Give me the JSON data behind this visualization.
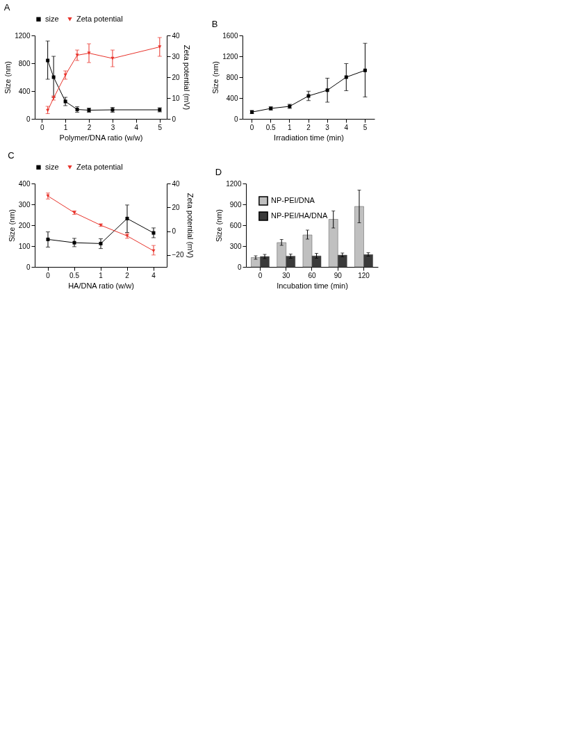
{
  "chart_data": [
    {
      "type": "line",
      "title": "A",
      "x": [
        0.25,
        0.5,
        1,
        1.5,
        2,
        3,
        5
      ],
      "xlim": [
        -0.3,
        5.3
      ],
      "xticks": [
        0,
        1,
        2,
        3,
        4,
        5
      ],
      "xlabel": "Polymer/DNA ratio (w/w)",
      "ylabel": "Size (nm)",
      "y2label": "Zeta potential (mV)",
      "ylim": [
        0,
        1200
      ],
      "yticks": [
        0,
        400,
        800,
        1200
      ],
      "y2lim": [
        0,
        40
      ],
      "y2ticks": [
        0,
        10,
        20,
        30,
        40
      ],
      "grid": false,
      "legend": "top",
      "series": [
        {
          "name": "size",
          "color": "#000000",
          "marker": "square",
          "values": [
            840,
            600,
            250,
            135,
            125,
            130,
            130
          ],
          "errors": [
            [
              570,
              1120
            ],
            [
              310,
              900
            ],
            [
              190,
              310
            ],
            [
              95,
              175
            ],
            [
              95,
              155
            ],
            [
              95,
              165
            ],
            [
              100,
              160
            ]
          ]
        },
        {
          "name": "Zeta potential",
          "color": "#e8322a",
          "marker": "triangle",
          "axis": "y2",
          "values": [
            4,
            10,
            21,
            30.5,
            31.5,
            29,
            34.5
          ],
          "errors": [
            [
              2.5,
              6
            ],
            [
              9,
              11
            ],
            [
              19,
              23
            ],
            [
              28,
              33
            ],
            [
              27,
              36
            ],
            [
              25,
              33
            ],
            [
              30,
              39
            ]
          ]
        }
      ]
    },
    {
      "type": "line",
      "title": "B",
      "categories": [
        "0",
        "0.5",
        "1",
        "2",
        "3",
        "4",
        "5"
      ],
      "xlabel": "Irradiation time (min)",
      "ylabel": "Size (nm)",
      "ylim": [
        0,
        1600
      ],
      "yticks": [
        0,
        400,
        800,
        1200,
        1600
      ],
      "grid": false,
      "series": [
        {
          "color": "#000000",
          "marker": "square",
          "values": [
            130,
            200,
            240,
            440,
            550,
            800,
            930
          ],
          "errors": [
            [
              100,
              160
            ],
            [
              170,
              230
            ],
            [
              200,
              280
            ],
            [
              350,
              530
            ],
            [
              320,
              780
            ],
            [
              540,
              1060
            ],
            [
              420,
              1450
            ]
          ]
        }
      ]
    },
    {
      "type": "line",
      "title": "C",
      "categories": [
        "0",
        "0.5",
        "1",
        "2",
        "4"
      ],
      "xlabel": "HA/DNA ratio (w/w)",
      "ylabel": "Size (nm)",
      "y2label": "Zeta potential (mV)",
      "ylim": [
        0,
        400
      ],
      "yticks": [
        0,
        100,
        200,
        300,
        400
      ],
      "y2lim": [
        -30,
        40
      ],
      "y2ticks": [
        -20,
        0,
        20,
        40
      ],
      "grid": false,
      "legend": "top",
      "series": [
        {
          "name": "size",
          "color": "#000000",
          "marker": "square",
          "values": [
            132,
            116,
            112,
            232,
            163
          ],
          "errors": [
            [
              95,
              168
            ],
            [
              97,
              137
            ],
            [
              88,
              135
            ],
            [
              165,
              297
            ],
            [
              140,
              187
            ]
          ]
        },
        {
          "name": "Zeta potential",
          "color": "#e8322a",
          "marker": "triangle",
          "axis": "y2",
          "values": [
            29.5,
            15.5,
            5,
            -4,
            -16.5
          ],
          "errors": [
            [
              27,
              32
            ],
            [
              14,
              17
            ],
            [
              4,
              6
            ],
            [
              -6,
              -2
            ],
            [
              -20,
              -12
            ]
          ]
        }
      ]
    },
    {
      "type": "bar",
      "title": "D",
      "categories": [
        "0",
        "30",
        "60",
        "90",
        "120"
      ],
      "xlabel": "Incubation time (min)",
      "ylabel": "Size (nm)",
      "ylim": [
        0,
        1200
      ],
      "yticks": [
        0,
        300,
        600,
        900,
        1200
      ],
      "grid": false,
      "legend": "top left",
      "series": [
        {
          "name": "NP-PEI/DNA",
          "color": "#c0c0c0",
          "values": [
            135,
            350,
            460,
            685,
            870
          ],
          "errors": [
            [
              110,
              160
            ],
            [
              310,
              395
            ],
            [
              400,
              530
            ],
            [
              560,
              805
            ],
            [
              635,
              1105
            ]
          ]
        },
        {
          "name": "NP-PEI/HA/DNA",
          "color": "#3a3a3a",
          "values": [
            150,
            155,
            158,
            170,
            178
          ],
          "errors": [
            [
              120,
              180
            ],
            [
              125,
              185
            ],
            [
              125,
              195
            ],
            [
              145,
              200
            ],
            [
              155,
              205
            ]
          ]
        }
      ]
    }
  ]
}
